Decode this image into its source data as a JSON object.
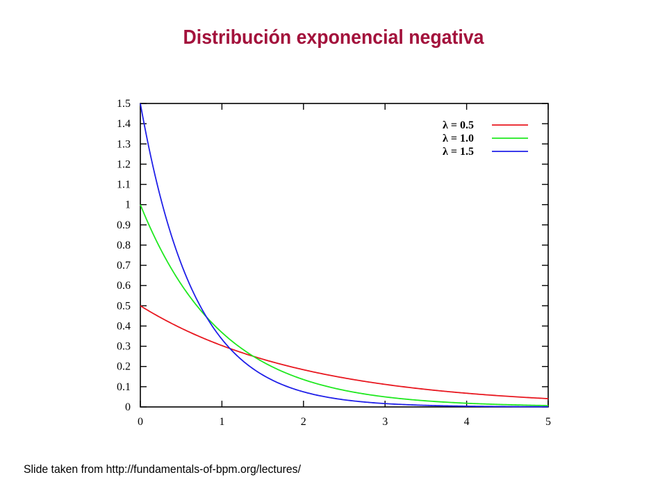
{
  "slide": {
    "title": "Distribución exponencial negativa",
    "footer": "Slide taken from http://fundamentals-of-bpm.org/lectures/"
  },
  "chart_data": {
    "type": "line",
    "title": "",
    "xlabel": "",
    "ylabel": "",
    "xlim": [
      0,
      5
    ],
    "ylim": [
      0,
      1.5
    ],
    "xticks": [
      0,
      1,
      2,
      3,
      4,
      5
    ],
    "yticks": [
      0,
      0.1,
      0.2,
      0.3,
      0.4,
      0.5,
      0.6,
      0.7,
      0.8,
      0.9,
      1,
      1.1,
      1.2,
      1.3,
      1.4,
      1.5
    ],
    "grid": false,
    "legend_position": "top-right",
    "series": [
      {
        "name": "λ = 0.5",
        "color": "#e8171f",
        "x": [
          0,
          0.25,
          0.5,
          0.75,
          1,
          1.25,
          1.5,
          1.75,
          2,
          2.25,
          2.5,
          2.75,
          3,
          3.25,
          3.5,
          3.75,
          4,
          4.25,
          4.5,
          4.75,
          5
        ],
        "y": [
          0.5,
          0.441,
          0.389,
          0.344,
          0.303,
          0.268,
          0.236,
          0.208,
          0.184,
          0.162,
          0.143,
          0.126,
          0.112,
          0.098,
          0.087,
          0.077,
          0.068,
          0.06,
          0.053,
          0.047,
          0.041
        ]
      },
      {
        "name": "λ = 1.0",
        "color": "#1fe81f",
        "x": [
          0,
          0.25,
          0.5,
          0.75,
          1,
          1.25,
          1.5,
          1.75,
          2,
          2.25,
          2.5,
          2.75,
          3,
          3.25,
          3.5,
          3.75,
          4,
          4.25,
          4.5,
          4.75,
          5
        ],
        "y": [
          1.0,
          0.779,
          0.607,
          0.472,
          0.368,
          0.287,
          0.223,
          0.174,
          0.135,
          0.105,
          0.082,
          0.064,
          0.05,
          0.039,
          0.03,
          0.024,
          0.018,
          0.014,
          0.011,
          0.009,
          0.007
        ]
      },
      {
        "name": "λ = 1.5",
        "color": "#1f1fe8",
        "x": [
          0,
          0.25,
          0.5,
          0.75,
          1,
          1.25,
          1.5,
          1.75,
          2,
          2.25,
          2.5,
          2.75,
          3,
          3.25,
          3.5,
          3.75,
          4,
          4.25,
          4.5,
          4.75,
          5
        ],
        "y": [
          1.5,
          1.031,
          0.709,
          0.487,
          0.335,
          0.23,
          0.158,
          0.109,
          0.075,
          0.051,
          0.035,
          0.024,
          0.017,
          0.011,
          0.008,
          0.005,
          0.004,
          0.003,
          0.002,
          0.001,
          0.001
        ]
      }
    ]
  }
}
